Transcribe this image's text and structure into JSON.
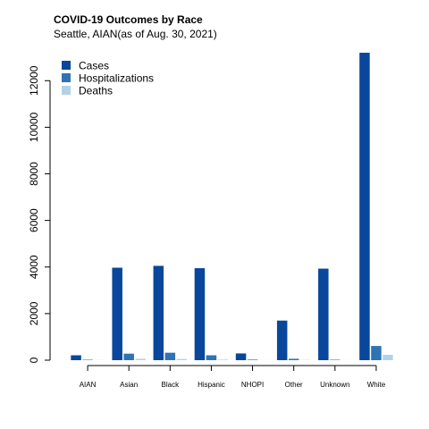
{
  "chart_data": {
    "type": "bar",
    "title": "COVID-19 Outcomes by Race",
    "subtitle": "Seattle, AIAN(as of Aug. 30, 2021)",
    "xlabel": "",
    "ylabel": "",
    "categories": [
      "AIAN",
      "Asian",
      "Black",
      "Hispanic",
      "NHOPI",
      "Other",
      "Unknown",
      "White"
    ],
    "series": [
      {
        "name": "Cases",
        "color": "#08479b",
        "values": [
          210,
          3970,
          4050,
          3950,
          290,
          1700,
          3930,
          13200
        ]
      },
      {
        "name": "Hospitalizations",
        "color": "#2f73b5",
        "values": [
          20,
          280,
          320,
          210,
          25,
          60,
          20,
          610
        ]
      },
      {
        "name": "Deaths",
        "color": "#b3d1e6",
        "values": [
          5,
          60,
          50,
          25,
          3,
          10,
          3,
          230
        ]
      }
    ],
    "ylim": [
      0,
      13200
    ],
    "yticks": [
      0,
      2000,
      4000,
      6000,
      8000,
      10000,
      12000
    ],
    "legend_position": "top-left",
    "grid": false
  }
}
